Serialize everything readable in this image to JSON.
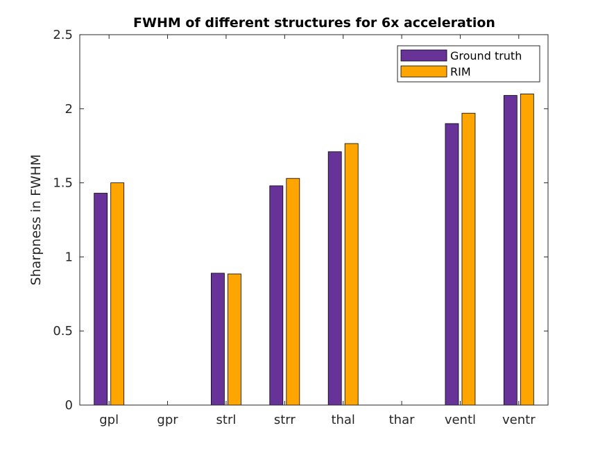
{
  "chart_data": {
    "type": "bar",
    "title": "FWHM of different structures for 6x acceleration",
    "xlabel": "",
    "ylabel": "Sharpness in FWHM",
    "categories": [
      "gpl",
      "gpr",
      "strl",
      "strr",
      "thal",
      "thar",
      "ventl",
      "ventr"
    ],
    "series": [
      {
        "name": "Ground truth",
        "color": "#673399",
        "values": [
          1.43,
          0,
          0.89,
          1.48,
          1.71,
          0,
          1.9,
          2.09
        ]
      },
      {
        "name": "RIM",
        "color": "#FFA500",
        "values": [
          1.5,
          0,
          0.885,
          1.53,
          1.765,
          0,
          1.97,
          2.1
        ]
      }
    ],
    "ylim": [
      0,
      2.5
    ],
    "yticks": [
      "0",
      "0.5",
      "1",
      "1.5",
      "2",
      "2.5"
    ],
    "grid": false,
    "legend_position": "top-right"
  }
}
